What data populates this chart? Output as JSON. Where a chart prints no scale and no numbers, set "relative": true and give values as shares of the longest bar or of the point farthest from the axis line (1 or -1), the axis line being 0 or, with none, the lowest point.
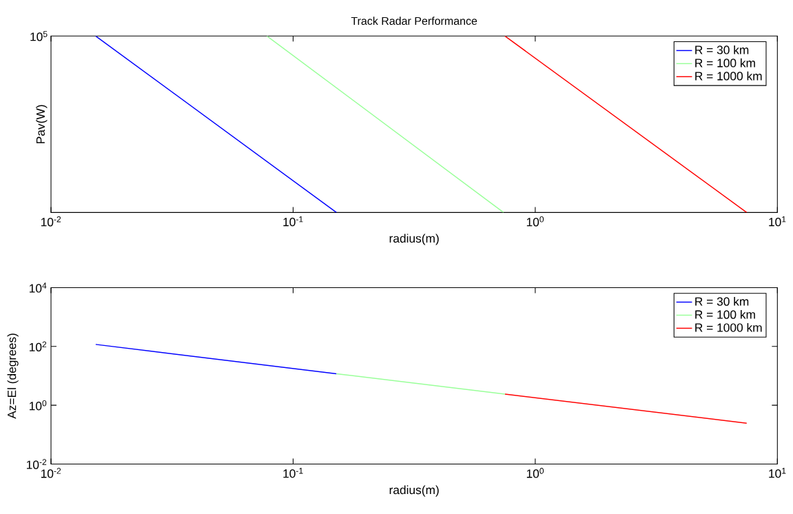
{
  "chart_data": [
    {
      "type": "line",
      "title": "Track Radar Performance",
      "xlabel": "radius(m)",
      "ylabel": "Pav(W)",
      "relative": true,
      "log": "x",
      "legend": "top right",
      "xlim": [
        0.01,
        10
      ],
      "xticks": [
        {
          "value": 0.01,
          "label": "10$^{-2}$"
        },
        {
          "value": 0.1,
          "label": "10$^{-1}$"
        },
        {
          "value": 1,
          "label": "10$^{0}$"
        },
        {
          "value": 10,
          "label": "10$^{1}$"
        }
      ],
      "annotations": [
        "10$^{5}$"
      ],
      "series": [
        {
          "name": "R = 30 km",
          "color": "#0000ff",
          "x": [
            0.0153,
            0.151
          ],
          "values": [
            1,
            0
          ]
        },
        {
          "name": "R = 100 km",
          "color": "#99ff99",
          "x": [
            0.078,
            0.74
          ],
          "values": [
            1,
            0
          ]
        },
        {
          "name": "R = 1000 km",
          "color": "#ff0000",
          "x": [
            0.75,
            7.47
          ],
          "values": [
            1,
            0
          ]
        }
      ]
    },
    {
      "type": "line",
      "xlabel": "radius(m)",
      "ylabel": "Az=El (degrees)",
      "log": "xy",
      "legend": "top right",
      "xlim": [
        0.01,
        10
      ],
      "xticks": [
        {
          "value": 0.01,
          "label": "10$^{-2}$"
        },
        {
          "value": 0.1,
          "label": "10$^{-1}$"
        },
        {
          "value": 1,
          "label": "10$^{0}$"
        },
        {
          "value": 10,
          "label": "10$^{1}$"
        }
      ],
      "ylim": [
        0.01,
        10000
      ],
      "yticks": [
        {
          "value": 0.01,
          "label": "10$^{-2}$"
        },
        {
          "value": 1,
          "label": "10$^{0}$"
        },
        {
          "value": 100,
          "label": "10$^{2}$"
        },
        {
          "value": 10000,
          "label": "10$^{4}$"
        }
      ],
      "series": [
        {
          "name": "R = 30 km",
          "color": "#0000ff",
          "x": [
            0.0153,
            0.151
          ],
          "values": [
            117,
            11.8
          ]
        },
        {
          "name": "R = 100 km",
          "color": "#99ff99",
          "x": [
            0.151,
            0.75
          ],
          "values": [
            11.8,
            2.4
          ]
        },
        {
          "name": "R = 1000 km",
          "color": "#ff0000",
          "x": [
            0.75,
            7.47
          ],
          "values": [
            2.4,
            0.245
          ]
        }
      ]
    }
  ]
}
